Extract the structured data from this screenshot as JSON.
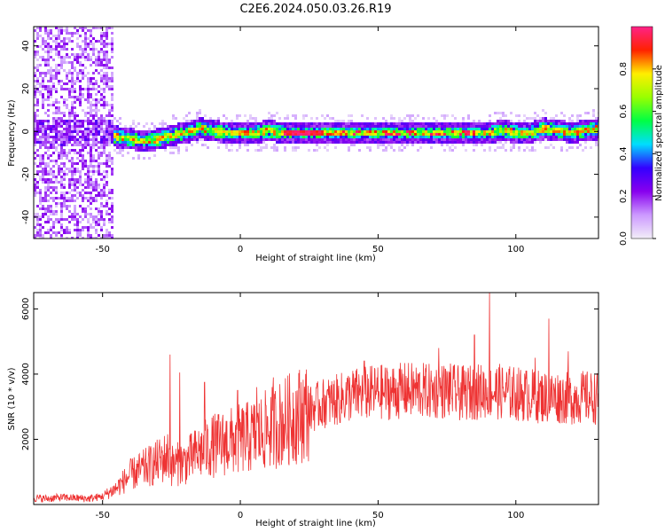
{
  "title": "C2E6.2024.050.03.26.R19",
  "colors": {
    "snr_line": "#ee3333",
    "axis": "#000000",
    "colormap": [
      "#f2eef8",
      "#cc99ff",
      "#8800ee",
      "#3300ff",
      "#00ddff",
      "#00ff44",
      "#99ff00",
      "#ffee00",
      "#ff2200",
      "#ff2288"
    ]
  },
  "chart_data": [
    {
      "type": "heatmap",
      "title": "",
      "xlabel": "Height of straight line (km)",
      "ylabel": "Frequency (Hz)",
      "xlim": [
        -75,
        130
      ],
      "ylim": [
        -50,
        49
      ],
      "x_ticks": [
        -50,
        0,
        50,
        100
      ],
      "y_ticks": [
        -40,
        -20,
        0,
        20,
        40
      ],
      "grid": false,
      "colorbar": {
        "label": "Normalized spectral amplitude",
        "range": [
          0,
          1
        ],
        "ticks": [
          0.0,
          0.2,
          0.4,
          0.6,
          0.8
        ]
      },
      "ridge": {
        "description_values": "dominant frequency vs height",
        "x": [
          -50,
          -45,
          -40,
          -35,
          -30,
          -25,
          -20,
          -15,
          -10,
          -5,
          0,
          5,
          10,
          15,
          20,
          25,
          30,
          35,
          40,
          45,
          50,
          55,
          60,
          65,
          70,
          75,
          80,
          85,
          90,
          95,
          100,
          105,
          110,
          115,
          120,
          125,
          130
        ],
        "y": [
          0,
          -2,
          -3,
          -4,
          -3,
          -1,
          0,
          2,
          1,
          0,
          0,
          0,
          1,
          0,
          0,
          0,
          0,
          0,
          0,
          0,
          0,
          0,
          0,
          0,
          0,
          0,
          0,
          0,
          0,
          1,
          0,
          0,
          2,
          1,
          0,
          1,
          2
        ]
      }
    },
    {
      "type": "line",
      "title": "",
      "xlabel": "Height of straight line (km)",
      "ylabel": "SNR (10 * v/v)",
      "xlim": [
        -75,
        130
      ],
      "ylim": [
        0,
        6500
      ],
      "x_ticks": [
        -50,
        0,
        50,
        100
      ],
      "y_ticks": [
        2000,
        4000,
        6000
      ],
      "grid": false,
      "series": [
        {
          "x": [
            -75,
            -70,
            -65,
            -60,
            -55,
            -50,
            -45,
            -40,
            -35,
            -30,
            -26,
            -25,
            -20,
            -15,
            -10,
            -5,
            0,
            5,
            10,
            15,
            20,
            25,
            30,
            35,
            40,
            45,
            50,
            55,
            60,
            65,
            70,
            75,
            80,
            85,
            90,
            95,
            100,
            105,
            110,
            115,
            120,
            125,
            130
          ],
          "values": [
            200,
            180,
            220,
            200,
            180,
            250,
            500,
            900,
            1100,
            1300,
            1500,
            1200,
            1300,
            1600,
            1800,
            1900,
            2000,
            2100,
            2300,
            2500,
            2700,
            2900,
            3100,
            3200,
            3350,
            3400,
            3450,
            3450,
            3500,
            3500,
            3450,
            3500,
            3400,
            3450,
            3500,
            3450,
            3400,
            3350,
            3300,
            3300,
            3250,
            3300,
            3250
          ]
        }
      ],
      "spikes": {
        "x": [
          -25.5,
          -22,
          -13,
          -1,
          6,
          12,
          45,
          72,
          85,
          90.5,
          107,
          112,
          119
        ],
        "values": [
          4600,
          4050,
          3750,
          3500,
          3600,
          3900,
          4400,
          4800,
          5200,
          6500,
          4500,
          5700,
          4700
        ]
      }
    }
  ]
}
